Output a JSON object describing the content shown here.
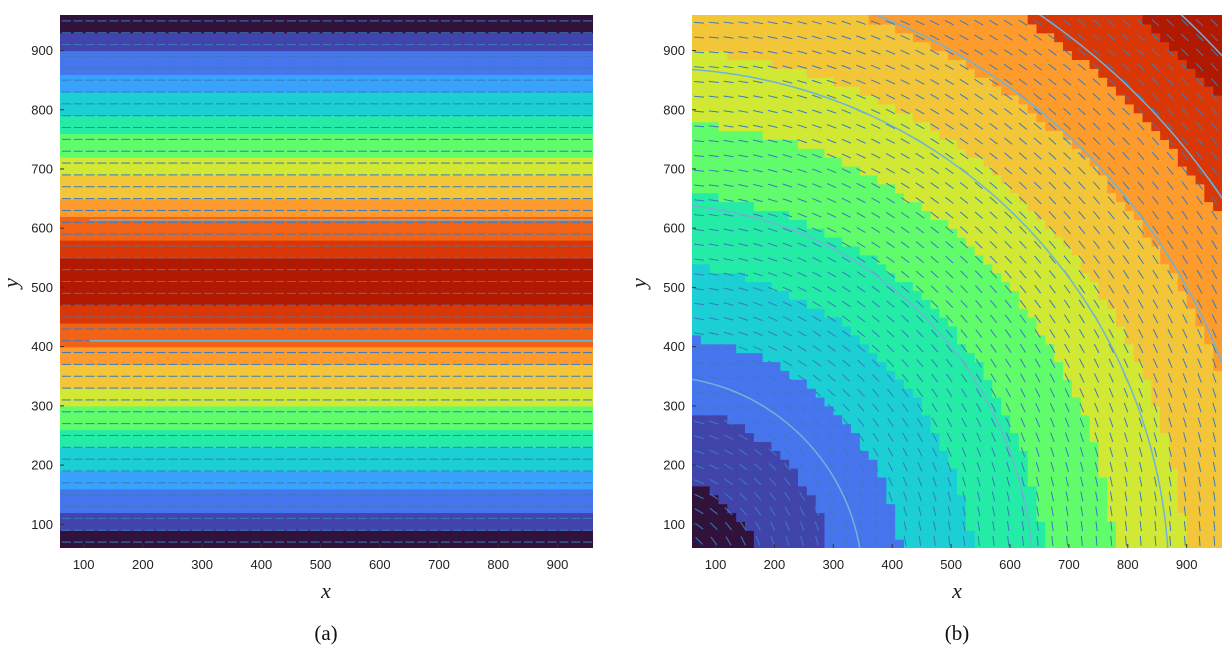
{
  "figure": {
    "panels": [
      "a",
      "b"
    ]
  },
  "chart_data": [
    {
      "type": "heatmap",
      "subtype": "filled-contour with quiver and streamlines",
      "caption": "(a)",
      "xlabel": "x",
      "ylabel": "y",
      "xlim": [
        60,
        960
      ],
      "ylim": [
        60,
        960
      ],
      "xticks": [
        100,
        200,
        300,
        400,
        500,
        600,
        700,
        800,
        900
      ],
      "yticks": [
        100,
        200,
        300,
        400,
        500,
        600,
        700,
        800,
        900
      ],
      "colormap": "turbo",
      "field": "horizontal bands, peak near y = 510",
      "levels": 13,
      "quiver": {
        "direction": "rightward (+x)",
        "spacing": 20
      },
      "streamlines_y": [
        410,
        614
      ]
    },
    {
      "type": "heatmap",
      "subtype": "filled-contour with quiver and streamlines",
      "caption": "(b)",
      "xlabel": "x",
      "ylabel": "y",
      "xlim": [
        60,
        960
      ],
      "ylim": [
        60,
        960
      ],
      "xticks": [
        100,
        200,
        300,
        400,
        500,
        600,
        700,
        800,
        900
      ],
      "yticks": [
        100,
        200,
        300,
        400,
        500,
        600,
        700,
        800,
        900
      ],
      "colormap": "turbo",
      "field": "radial from origin, increasing toward top-right",
      "levels": 11,
      "quiver": {
        "direction": "circumferential (down-right)",
        "spacing": 25
      },
      "streamline_radii": [
        350,
        640,
        870,
        1030,
        1160,
        1310
      ]
    }
  ],
  "colors": {
    "streamline": "#6fb4d8",
    "arrow": "#3a7bbf",
    "turbo": [
      "#30123b",
      "#4145ab",
      "#4675ed",
      "#39a2fc",
      "#1bcfd4",
      "#24eca6",
      "#61fc6c",
      "#a4fc3b",
      "#d1e834",
      "#f3c63a",
      "#fe9b2d",
      "#f36315",
      "#d93806",
      "#b11901",
      "#7a0402"
    ]
  }
}
